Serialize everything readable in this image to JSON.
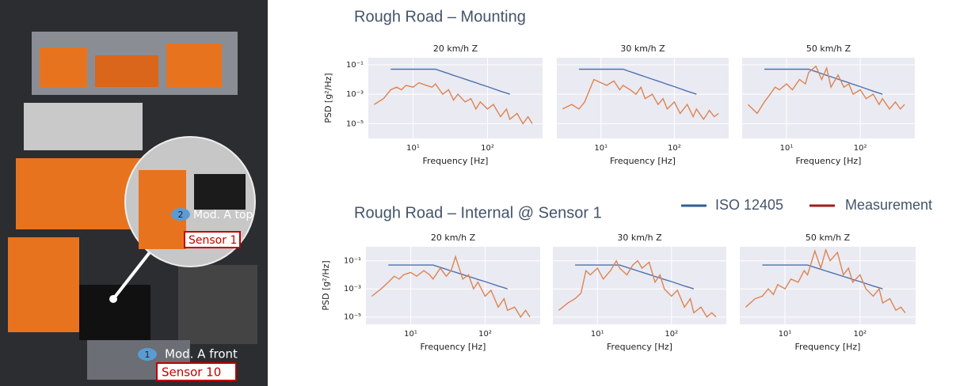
{
  "sections": [
    "Rough Road – Mounting",
    "Rough Road – Internal @ Sensor 1"
  ],
  "photo": {
    "labels": [
      "2",
      "Mod. A top",
      "Sensor 1",
      "1",
      "Mod. A front",
      "Sensor 10"
    ]
  },
  "legend_colors": [
    "#2f5f95",
    "#a01c1c"
  ],
  "chart_data": [
    {
      "type": "line",
      "title": "20 km/h Z",
      "xlabel": "Frequency [Hz]",
      "ylabel": "PSD [g²/Hz]",
      "xlog": true,
      "ylog": true,
      "grid": true,
      "xlim": [
        2.5,
        550
      ],
      "ylim": [
        1e-06,
        0.3
      ],
      "xticks": [
        {
          "value": 10,
          "label": "10¹"
        },
        {
          "value": 100,
          "label": "10²"
        }
      ],
      "yticks": [
        {
          "value": 1e-05,
          "label": "10⁻⁵"
        },
        {
          "value": 0.001,
          "label": "10⁻³"
        },
        {
          "value": 0.1,
          "label": "10⁻¹"
        }
      ],
      "x": [
        3,
        4,
        5,
        6,
        7,
        8,
        10,
        12,
        15,
        18,
        20,
        25,
        30,
        35,
        40,
        50,
        60,
        70,
        80,
        100,
        120,
        150,
        180,
        200,
        250,
        300,
        350,
        400
      ],
      "series": [
        {
          "name": "ISO 12405",
          "color": "#4c72b0",
          "values": [
            null,
            null,
            0.05,
            0.05,
            0.05,
            0.05,
            0.05,
            0.05,
            0.05,
            0.05,
            0.05,
            0.034,
            0.025,
            0.019,
            0.0154,
            0.0105,
            0.0077,
            0.006,
            0.0047,
            0.0033,
            0.0024,
            0.0016,
            0.0012,
            0.001,
            null,
            null,
            null,
            null
          ]
        },
        {
          "name": "Measurement",
          "color": "#dd8452",
          "values": [
            0.0002,
            0.0005,
            0.002,
            0.003,
            0.002,
            0.004,
            0.003,
            0.006,
            0.004,
            0.003,
            0.005,
            0.001,
            0.002,
            0.0004,
            0.001,
            0.0003,
            0.0005,
            0.0001,
            0.0003,
            0.0001,
            0.0002,
            3e-05,
            0.0001,
            2e-05,
            5e-05,
            1e-05,
            3e-05,
            1e-05
          ]
        }
      ]
    },
    {
      "type": "line",
      "title": "30 km/h Z",
      "xlabel": "Frequency [Hz]",
      "xlog": true,
      "ylog": true,
      "grid": true,
      "xlim": [
        2.5,
        550
      ],
      "ylim": [
        1e-06,
        0.3
      ],
      "xticks": [
        {
          "value": 10,
          "label": "10¹"
        },
        {
          "value": 100,
          "label": "10²"
        }
      ],
      "yticks": [
        1e-05,
        0.001,
        0.1
      ],
      "x": [
        3,
        4,
        5,
        6,
        7,
        8,
        10,
        12,
        15,
        18,
        20,
        25,
        30,
        35,
        40,
        50,
        60,
        70,
        80,
        100,
        120,
        150,
        180,
        200,
        250,
        300,
        350,
        400
      ],
      "series": [
        {
          "name": "ISO 12405",
          "color": "#4c72b0",
          "values": [
            null,
            null,
            0.05,
            0.05,
            0.05,
            0.05,
            0.05,
            0.05,
            0.05,
            0.05,
            0.05,
            0.034,
            0.025,
            0.019,
            0.0154,
            0.0105,
            0.0077,
            0.006,
            0.0047,
            0.0033,
            0.0024,
            0.0016,
            0.0012,
            0.001,
            null,
            null,
            null,
            null
          ]
        },
        {
          "name": "Measurement",
          "color": "#dd8452",
          "values": [
            0.0001,
            0.0002,
            0.0001,
            0.0003,
            0.002,
            0.01,
            0.006,
            0.004,
            0.008,
            0.002,
            0.004,
            0.002,
            0.001,
            0.003,
            0.0005,
            0.001,
            0.0002,
            0.0005,
            0.0001,
            0.0003,
            5e-05,
            0.0002,
            3e-05,
            0.0001,
            2e-05,
            8e-05,
            3e-05,
            5e-05
          ]
        }
      ]
    },
    {
      "type": "line",
      "title": "50 km/h Z",
      "xlabel": "Frequency [Hz]",
      "xlog": true,
      "ylog": true,
      "grid": true,
      "xlim": [
        2.5,
        550
      ],
      "ylim": [
        1e-06,
        0.3
      ],
      "xticks": [
        {
          "value": 10,
          "label": "10¹"
        },
        {
          "value": 100,
          "label": "10²"
        }
      ],
      "yticks": [
        1e-05,
        0.001,
        0.1
      ],
      "x": [
        3,
        4,
        5,
        6,
        7,
        8,
        10,
        12,
        15,
        18,
        20,
        25,
        30,
        35,
        40,
        50,
        60,
        70,
        80,
        100,
        120,
        150,
        180,
        200,
        250,
        300,
        350,
        400
      ],
      "series": [
        {
          "name": "ISO 12405",
          "color": "#4c72b0",
          "values": [
            null,
            null,
            0.05,
            0.05,
            0.05,
            0.05,
            0.05,
            0.05,
            0.05,
            0.05,
            0.05,
            0.034,
            0.025,
            0.019,
            0.0154,
            0.0105,
            0.0077,
            0.006,
            0.0047,
            0.0033,
            0.0024,
            0.0016,
            0.0012,
            0.001,
            null,
            null,
            null,
            null
          ]
        },
        {
          "name": "Measurement",
          "color": "#dd8452",
          "values": [
            0.0002,
            5e-05,
            0.0003,
            0.001,
            0.003,
            0.002,
            0.005,
            0.002,
            0.01,
            0.005,
            0.03,
            0.08,
            0.01,
            0.06,
            0.003,
            0.02,
            0.003,
            0.005,
            0.001,
            0.002,
            0.0005,
            0.001,
            0.0002,
            0.0005,
            0.0001,
            0.0003,
            0.0001,
            0.0002
          ]
        }
      ]
    },
    {
      "type": "line",
      "title": "20 km/h Z",
      "xlabel": "Frequency [Hz]",
      "ylabel": "PSD [g²/Hz]",
      "xlog": true,
      "ylog": true,
      "grid": true,
      "xlim": [
        2.5,
        550
      ],
      "ylim": [
        3e-06,
        1
      ],
      "xticks": [
        {
          "value": 10,
          "label": "10¹"
        },
        {
          "value": 100,
          "label": "10²"
        }
      ],
      "yticks": [
        {
          "value": 1e-05,
          "label": "10⁻⁵"
        },
        {
          "value": 0.001,
          "label": "10⁻³"
        },
        {
          "value": 0.1,
          "label": "10⁻¹"
        }
      ],
      "x": [
        3,
        4,
        5,
        6,
        7,
        8,
        10,
        12,
        15,
        18,
        20,
        25,
        30,
        35,
        40,
        50,
        60,
        70,
        80,
        100,
        120,
        150,
        180,
        200,
        250,
        300,
        350,
        400
      ],
      "series": [
        {
          "name": "ISO 12405",
          "color": "#4c72b0",
          "values": [
            null,
            null,
            0.05,
            0.05,
            0.05,
            0.05,
            0.05,
            0.05,
            0.05,
            0.05,
            0.05,
            0.034,
            0.025,
            0.019,
            0.0154,
            0.0105,
            0.0077,
            0.006,
            0.0047,
            0.0033,
            0.0024,
            0.0016,
            0.0012,
            0.001,
            null,
            null,
            null,
            null
          ]
        },
        {
          "name": "Measurement",
          "color": "#dd8452",
          "values": [
            0.0003,
            0.001,
            0.003,
            0.008,
            0.005,
            0.01,
            0.015,
            0.008,
            0.02,
            0.01,
            0.005,
            0.03,
            0.008,
            0.02,
            0.2,
            0.005,
            0.01,
            0.001,
            0.003,
            0.0003,
            0.0008,
            5e-05,
            0.0002,
            3e-05,
            5e-05,
            1e-05,
            3e-05,
            1e-05
          ]
        }
      ]
    },
    {
      "type": "line",
      "title": "30 km/h Z",
      "xlabel": "Frequency [Hz]",
      "xlog": true,
      "ylog": true,
      "grid": true,
      "xlim": [
        2.5,
        550
      ],
      "ylim": [
        3e-06,
        1
      ],
      "xticks": [
        {
          "value": 10,
          "label": "10¹"
        },
        {
          "value": 100,
          "label": "10²"
        }
      ],
      "yticks": [
        1e-05,
        0.001,
        0.1
      ],
      "x": [
        3,
        4,
        5,
        6,
        7,
        8,
        10,
        12,
        15,
        18,
        20,
        25,
        30,
        35,
        40,
        50,
        60,
        70,
        80,
        100,
        120,
        150,
        180,
        200,
        250,
        300,
        350,
        400
      ],
      "series": [
        {
          "name": "ISO 12405",
          "color": "#4c72b0",
          "values": [
            null,
            null,
            0.05,
            0.05,
            0.05,
            0.05,
            0.05,
            0.05,
            0.05,
            0.05,
            0.05,
            0.034,
            0.025,
            0.019,
            0.0154,
            0.0105,
            0.0077,
            0.006,
            0.0047,
            0.0033,
            0.0024,
            0.0016,
            0.0012,
            0.001,
            null,
            null,
            null,
            null
          ]
        },
        {
          "name": "Measurement",
          "color": "#dd8452",
          "values": [
            3e-05,
            0.0001,
            0.0002,
            0.0005,
            0.02,
            0.01,
            0.03,
            0.005,
            0.02,
            0.1,
            0.03,
            0.01,
            0.05,
            0.1,
            0.03,
            0.08,
            0.003,
            0.01,
            0.001,
            0.0003,
            0.0008,
            5e-05,
            0.0002,
            2e-05,
            5e-05,
            1e-05,
            2e-05,
            1e-05
          ]
        }
      ]
    },
    {
      "type": "line",
      "title": "50 km/h Z",
      "xlabel": "Frequency [Hz]",
      "xlog": true,
      "ylog": true,
      "grid": true,
      "xlim": [
        2.5,
        550
      ],
      "ylim": [
        3e-06,
        1
      ],
      "xticks": [
        {
          "value": 10,
          "label": "10¹"
        },
        {
          "value": 100,
          "label": "10²"
        }
      ],
      "yticks": [
        1e-05,
        0.001,
        0.1
      ],
      "x": [
        3,
        4,
        5,
        6,
        7,
        8,
        10,
        12,
        15,
        18,
        20,
        25,
        30,
        35,
        40,
        50,
        60,
        70,
        80,
        100,
        120,
        150,
        180,
        200,
        250,
        300,
        350,
        400
      ],
      "series": [
        {
          "name": "ISO 12405",
          "color": "#4c72b0",
          "values": [
            null,
            null,
            0.05,
            0.05,
            0.05,
            0.05,
            0.05,
            0.05,
            0.05,
            0.05,
            0.05,
            0.034,
            0.025,
            0.019,
            0.0154,
            0.0105,
            0.0077,
            0.006,
            0.0047,
            0.0033,
            0.0024,
            0.0016,
            0.0012,
            0.001,
            null,
            null,
            null,
            null
          ]
        },
        {
          "name": "Measurement",
          "color": "#dd8452",
          "values": [
            5e-05,
            0.0002,
            0.0003,
            0.001,
            0.0004,
            0.002,
            0.001,
            0.005,
            0.003,
            0.02,
            0.01,
            0.5,
            0.03,
            0.6,
            0.1,
            0.4,
            0.01,
            0.03,
            0.003,
            0.01,
            0.001,
            0.0003,
            0.001,
            0.0001,
            0.0002,
            3e-05,
            5e-05,
            2e-05
          ]
        }
      ]
    }
  ]
}
